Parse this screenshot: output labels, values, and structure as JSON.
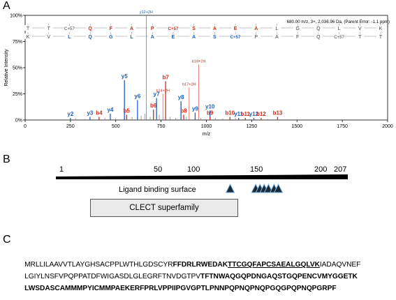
{
  "panelA": {
    "letter": "A",
    "info": "680.00 m/z, 3+, 2,036.96 Da, (Parent Error: -1.1 ppm)",
    "chart_data": {
      "type": "bar",
      "xlabel": "m/z",
      "ylabel": "Relative Intensity",
      "xlim": [
        0,
        2000
      ],
      "ylim": [
        0,
        100
      ],
      "x_ticks": [
        "0",
        "250",
        "500",
        "750",
        "1000",
        "1250",
        "1500",
        "1750",
        "2000"
      ],
      "y_ticks": [
        "0%",
        "25%",
        "50%",
        "75%",
        "100%"
      ],
      "series": [
        {
          "name": "y ions",
          "color": "#1f5fbf",
          "peaks": [
            {
              "mz": 250,
              "rel": 2,
              "label": "y2"
            },
            {
              "mz": 358,
              "rel": 3,
              "label": "y3"
            },
            {
              "mz": 470,
              "rel": 6,
              "label": "y4"
            },
            {
              "mz": 548,
              "rel": 38,
              "label": "y5"
            },
            {
              "mz": 620,
              "rel": 19,
              "label": "y6"
            },
            {
              "mz": 725,
              "rel": 21,
              "label": "y7"
            },
            {
              "mz": 860,
              "rel": 18,
              "label": "y8"
            },
            {
              "mz": 938,
              "rel": 7,
              "label": "y9"
            },
            {
              "mz": 1020,
              "rel": 9,
              "label": "y10"
            },
            {
              "mz": 1178,
              "rel": 2,
              "label": "y11"
            },
            {
              "mz": 1262,
              "rel": 2,
              "label": "y12"
            },
            {
              "mz": 668,
              "rel": 100,
              "label": "y12+2H"
            }
          ]
        },
        {
          "name": "b ions",
          "color": "#d22a18",
          "peaks": [
            {
              "mz": 408,
              "rel": 3,
              "label": "b4"
            },
            {
              "mz": 560,
              "rel": 5,
              "label": "b5"
            },
            {
              "mz": 708,
              "rel": 10,
              "label": "b6"
            },
            {
              "mz": 775,
              "rel": 37,
              "label": "b7"
            },
            {
              "mz": 875,
              "rel": 5,
              "label": "b8"
            },
            {
              "mz": 1020,
              "rel": 3,
              "label": "b9"
            },
            {
              "mz": 1130,
              "rel": 3,
              "label": "b10"
            },
            {
              "mz": 1215,
              "rel": 2,
              "label": "b11"
            },
            {
              "mz": 1302,
              "rel": 2,
              "label": "b12"
            },
            {
              "mz": 1393,
              "rel": 3,
              "label": "b13"
            },
            {
              "mz": 760,
              "rel": 25,
              "label": "b14+2H"
            },
            {
              "mz": 905,
              "rel": 31,
              "label": "b17+2H"
            },
            {
              "mz": 958,
              "rel": 53,
              "label": "b18+2H"
            }
          ]
        }
      ]
    },
    "ladder_top": [
      "T",
      "T",
      "C+57",
      "Q",
      "F",
      "A",
      "P",
      "C+57",
      "S",
      "A",
      "E",
      "A",
      "L",
      "G",
      "Q",
      "L",
      "V",
      "K"
    ],
    "ladder_bottom": [
      "K",
      "V",
      "L",
      "Q",
      "G",
      "L",
      "A",
      "E",
      "A",
      "S",
      "C+57",
      "P",
      "A",
      "F",
      "Q",
      "C+57",
      "T",
      "T"
    ]
  },
  "panelB": {
    "letter": "B",
    "tick_labels": [
      "1",
      "50",
      "100",
      "150",
      "200",
      "207"
    ],
    "ligand_label": "Ligand binding surface",
    "domain_label": "CLECT superfamily",
    "triangles": [
      124,
      142,
      145,
      148,
      151,
      155,
      158
    ]
  },
  "panelC": {
    "letter": "C",
    "lines": [
      [
        {
          "t": "MRLLILAAVVTLAYGHSACPPLWTHLGDSCYR",
          "s": ""
        },
        {
          "t": "FFDRLRWEDAK",
          "s": "bold"
        },
        {
          "t": "TTCGQFAPCSAEALGQLVK",
          "s": "bold ul"
        },
        {
          "t": "IADAQVNEF",
          "s": ""
        }
      ],
      [
        {
          "t": "LGIYLNSFVPQPPATDFWIGASDLGLEGRFTNVDGTPV",
          "s": ""
        },
        {
          "t": "TFTNWAQGQPDNGAQSTGQPENCVMYGGETK",
          "s": "bold"
        }
      ],
      [
        {
          "t": "LWSDASCAMMMPYICMMPAEKERFPRLVPPIIPGVGPTLPNNPQPNQPNQPGQGPQPNQPGRPF",
          "s": "bold"
        }
      ]
    ]
  }
}
